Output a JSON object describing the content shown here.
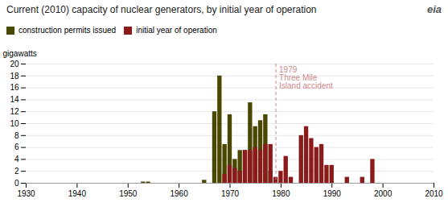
{
  "chart_data": {
    "type": "bar",
    "title": "Current (2010) capacity of nuclear generators, by initial year of operation",
    "ylabel": "gigawatts",
    "xlim": [
      1930,
      2010
    ],
    "ylim": [
      0,
      20
    ],
    "xticks": [
      1930,
      1940,
      1950,
      1960,
      1970,
      1980,
      1990,
      2000,
      2010
    ],
    "yticks": [
      0,
      2,
      4,
      6,
      8,
      10,
      12,
      14,
      16,
      18,
      20
    ],
    "grid": true,
    "legend": "upper left",
    "series": [
      {
        "name": "construction permits issued",
        "color": "#4a4700",
        "x": [
          1953,
          1954,
          1965,
          1967,
          1968,
          1969,
          1970,
          1971,
          1972,
          1973,
          1974,
          1975,
          1976,
          1977,
          1978
        ],
        "values": [
          0.2,
          0.2,
          0.5,
          12,
          18,
          6.5,
          11.5,
          4,
          5.5,
          5.5,
          13.5,
          9.5,
          10.5,
          11.5,
          2
        ]
      },
      {
        "name": "initial year of operation",
        "color": "#8b1a1a",
        "x": [
          1969,
          1970,
          1971,
          1972,
          1973,
          1974,
          1975,
          1976,
          1977,
          1978,
          1979,
          1980,
          1981,
          1982,
          1984,
          1985,
          1986,
          1987,
          1988,
          1989,
          1990,
          1993,
          1996,
          1998
        ],
        "values": [
          1.5,
          3,
          2.5,
          2,
          5.5,
          5.5,
          6,
          5.5,
          6.5,
          6.5,
          1,
          2,
          4.5,
          1,
          8,
          9.5,
          7.5,
          6,
          6.5,
          3,
          3,
          1,
          1,
          4
        ]
      }
    ],
    "annotations": [
      {
        "text": "1979\nThree Mile\nIsland accident",
        "x": 1979,
        "color": "#cc8888",
        "line_style": "dashed"
      },
      {
        "text": "eia"
      }
    ]
  }
}
